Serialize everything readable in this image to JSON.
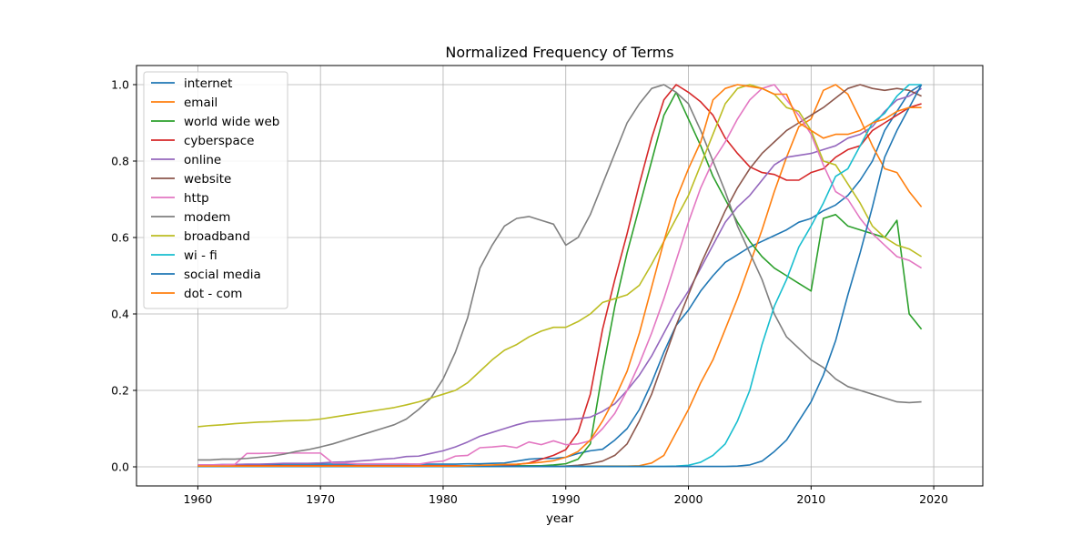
{
  "chart_data": {
    "type": "line",
    "title": "Normalized Frequency of Terms",
    "xlabel": "year",
    "ylabel": "",
    "xlim": [
      1955,
      2024
    ],
    "ylim": [
      -0.05,
      1.05
    ],
    "xticks": [
      1960,
      1970,
      1980,
      1990,
      2000,
      2010,
      2020
    ],
    "yticks": [
      0.0,
      0.2,
      0.4,
      0.6,
      0.8,
      1.0
    ],
    "xtick_labels": [
      "1960",
      "1970",
      "1980",
      "1990",
      "2000",
      "2010",
      "2020"
    ],
    "ytick_labels": [
      "0.0",
      "0.2",
      "0.4",
      "0.6",
      "0.8",
      "1.0"
    ],
    "grid": true,
    "legend_position": "top-left",
    "x": [
      1960,
      1961,
      1962,
      1963,
      1964,
      1965,
      1966,
      1967,
      1968,
      1969,
      1970,
      1971,
      1972,
      1973,
      1974,
      1975,
      1976,
      1977,
      1978,
      1979,
      1980,
      1981,
      1982,
      1983,
      1984,
      1985,
      1986,
      1987,
      1988,
      1989,
      1990,
      1991,
      1992,
      1993,
      1994,
      1995,
      1996,
      1997,
      1998,
      1999,
      2000,
      2001,
      2002,
      2003,
      2004,
      2005,
      2006,
      2007,
      2008,
      2009,
      2010,
      2011,
      2012,
      2013,
      2014,
      2015,
      2016,
      2017,
      2018,
      2019
    ],
    "series": [
      {
        "name": "internet",
        "color": "#1f77b4",
        "values": [
          0.005,
          0.005,
          0.005,
          0.005,
          0.006,
          0.006,
          0.006,
          0.007,
          0.007,
          0.007,
          0.007,
          0.007,
          0.007,
          0.007,
          0.007,
          0.007,
          0.007,
          0.007,
          0.007,
          0.007,
          0.007,
          0.007,
          0.008,
          0.008,
          0.009,
          0.01,
          0.015,
          0.02,
          0.022,
          0.022,
          0.025,
          0.035,
          0.042,
          0.046,
          0.07,
          0.1,
          0.15,
          0.22,
          0.3,
          0.37,
          0.41,
          0.46,
          0.5,
          0.535,
          0.555,
          0.575,
          0.59,
          0.605,
          0.62,
          0.64,
          0.65,
          0.67,
          0.685,
          0.71,
          0.75,
          0.8,
          0.88,
          0.93,
          0.98,
          1.0
        ]
      },
      {
        "name": "email",
        "color": "#ff7f0e",
        "values": [
          0.002,
          0.002,
          0.002,
          0.002,
          0.002,
          0.002,
          0.002,
          0.002,
          0.002,
          0.002,
          0.002,
          0.002,
          0.002,
          0.002,
          0.002,
          0.002,
          0.002,
          0.002,
          0.002,
          0.002,
          0.002,
          0.002,
          0.002,
          0.002,
          0.002,
          0.002,
          0.002,
          0.002,
          0.002,
          0.002,
          0.002,
          0.002,
          0.002,
          0.002,
          0.002,
          0.002,
          0.003,
          0.01,
          0.03,
          0.09,
          0.15,
          0.22,
          0.28,
          0.36,
          0.44,
          0.53,
          0.62,
          0.72,
          0.81,
          0.89,
          0.91,
          0.985,
          1.0,
          0.975,
          0.91,
          0.84,
          0.78,
          0.77,
          0.72,
          0.68
        ]
      },
      {
        "name": "world wide web",
        "color": "#2ca02c",
        "values": [
          0.003,
          0.003,
          0.003,
          0.003,
          0.003,
          0.003,
          0.003,
          0.003,
          0.003,
          0.003,
          0.003,
          0.003,
          0.003,
          0.003,
          0.003,
          0.003,
          0.003,
          0.003,
          0.003,
          0.003,
          0.003,
          0.003,
          0.003,
          0.003,
          0.003,
          0.003,
          0.003,
          0.003,
          0.003,
          0.005,
          0.008,
          0.02,
          0.06,
          0.25,
          0.42,
          0.56,
          0.68,
          0.8,
          0.92,
          0.98,
          0.91,
          0.84,
          0.76,
          0.7,
          0.64,
          0.59,
          0.55,
          0.52,
          0.5,
          0.48,
          0.46,
          0.65,
          0.66,
          0.63,
          0.62,
          0.61,
          0.6,
          0.645,
          0.4,
          0.36
        ]
      },
      {
        "name": "cyberspace",
        "color": "#d62728",
        "values": [
          0.003,
          0.003,
          0.003,
          0.003,
          0.003,
          0.003,
          0.003,
          0.003,
          0.003,
          0.003,
          0.003,
          0.003,
          0.003,
          0.003,
          0.003,
          0.003,
          0.003,
          0.003,
          0.003,
          0.003,
          0.003,
          0.003,
          0.003,
          0.003,
          0.003,
          0.004,
          0.006,
          0.01,
          0.02,
          0.03,
          0.045,
          0.09,
          0.19,
          0.36,
          0.49,
          0.61,
          0.74,
          0.86,
          0.96,
          1.0,
          0.98,
          0.955,
          0.92,
          0.86,
          0.82,
          0.785,
          0.77,
          0.765,
          0.75,
          0.75,
          0.77,
          0.78,
          0.81,
          0.83,
          0.84,
          0.88,
          0.9,
          0.92,
          0.94,
          0.95
        ]
      },
      {
        "name": "online",
        "color": "#9467bd",
        "values": [
          0.005,
          0.005,
          0.006,
          0.006,
          0.007,
          0.007,
          0.008,
          0.009,
          0.009,
          0.009,
          0.01,
          0.012,
          0.013,
          0.015,
          0.017,
          0.02,
          0.022,
          0.027,
          0.028,
          0.035,
          0.042,
          0.052,
          0.065,
          0.08,
          0.09,
          0.1,
          0.11,
          0.118,
          0.12,
          0.122,
          0.124,
          0.126,
          0.13,
          0.145,
          0.165,
          0.2,
          0.24,
          0.29,
          0.35,
          0.41,
          0.46,
          0.52,
          0.58,
          0.64,
          0.68,
          0.71,
          0.75,
          0.79,
          0.81,
          0.815,
          0.82,
          0.83,
          0.84,
          0.86,
          0.87,
          0.89,
          0.93,
          0.96,
          0.97,
          0.99
        ]
      },
      {
        "name": "website",
        "color": "#8c564b",
        "values": [
          0.001,
          0.001,
          0.001,
          0.001,
          0.001,
          0.001,
          0.001,
          0.001,
          0.001,
          0.001,
          0.001,
          0.001,
          0.001,
          0.001,
          0.001,
          0.001,
          0.001,
          0.001,
          0.001,
          0.001,
          0.001,
          0.001,
          0.001,
          0.001,
          0.001,
          0.001,
          0.001,
          0.001,
          0.001,
          0.001,
          0.002,
          0.004,
          0.008,
          0.015,
          0.03,
          0.06,
          0.12,
          0.19,
          0.28,
          0.37,
          0.45,
          0.53,
          0.6,
          0.67,
          0.73,
          0.78,
          0.82,
          0.85,
          0.88,
          0.9,
          0.92,
          0.94,
          0.965,
          0.99,
          1.0,
          0.99,
          0.985,
          0.99,
          0.985,
          0.97
        ]
      },
      {
        "name": "http",
        "color": "#e377c2",
        "values": [
          0.005,
          0.005,
          0.005,
          0.006,
          0.035,
          0.035,
          0.036,
          0.036,
          0.036,
          0.036,
          0.036,
          0.01,
          0.01,
          0.008,
          0.008,
          0.008,
          0.008,
          0.008,
          0.007,
          0.012,
          0.015,
          0.028,
          0.03,
          0.05,
          0.052,
          0.055,
          0.05,
          0.065,
          0.058,
          0.068,
          0.058,
          0.06,
          0.068,
          0.1,
          0.14,
          0.2,
          0.27,
          0.35,
          0.44,
          0.54,
          0.64,
          0.73,
          0.8,
          0.85,
          0.91,
          0.96,
          0.99,
          1.0,
          0.96,
          0.92,
          0.87,
          0.79,
          0.72,
          0.7,
          0.65,
          0.61,
          0.58,
          0.55,
          0.54,
          0.52
        ]
      },
      {
        "name": "modem",
        "color": "#7f7f7f",
        "values": [
          0.018,
          0.018,
          0.02,
          0.02,
          0.022,
          0.025,
          0.028,
          0.033,
          0.04,
          0.045,
          0.052,
          0.06,
          0.07,
          0.08,
          0.09,
          0.1,
          0.11,
          0.125,
          0.15,
          0.18,
          0.23,
          0.3,
          0.39,
          0.52,
          0.58,
          0.63,
          0.65,
          0.655,
          0.645,
          0.635,
          0.58,
          0.6,
          0.66,
          0.74,
          0.82,
          0.9,
          0.95,
          0.99,
          1.0,
          0.98,
          0.95,
          0.88,
          0.8,
          0.72,
          0.63,
          0.56,
          0.49,
          0.4,
          0.34,
          0.31,
          0.28,
          0.26,
          0.23,
          0.21,
          0.2,
          0.19,
          0.18,
          0.17,
          0.168,
          0.17
        ]
      },
      {
        "name": "broadband",
        "color": "#bcbd22",
        "values": [
          0.105,
          0.108,
          0.11,
          0.113,
          0.115,
          0.117,
          0.118,
          0.12,
          0.121,
          0.122,
          0.125,
          0.13,
          0.135,
          0.14,
          0.145,
          0.15,
          0.155,
          0.162,
          0.17,
          0.18,
          0.19,
          0.2,
          0.22,
          0.25,
          0.28,
          0.305,
          0.32,
          0.34,
          0.355,
          0.365,
          0.365,
          0.38,
          0.4,
          0.43,
          0.44,
          0.45,
          0.475,
          0.53,
          0.59,
          0.65,
          0.71,
          0.79,
          0.87,
          0.95,
          0.99,
          1.0,
          0.99,
          0.975,
          0.94,
          0.93,
          0.88,
          0.8,
          0.79,
          0.74,
          0.69,
          0.63,
          0.6,
          0.58,
          0.57,
          0.55
        ]
      },
      {
        "name": "wi - fi",
        "color": "#17becf",
        "values": [
          0.001,
          0.001,
          0.001,
          0.001,
          0.001,
          0.001,
          0.001,
          0.001,
          0.001,
          0.001,
          0.001,
          0.001,
          0.001,
          0.001,
          0.001,
          0.001,
          0.001,
          0.001,
          0.001,
          0.001,
          0.001,
          0.001,
          0.001,
          0.001,
          0.001,
          0.001,
          0.001,
          0.001,
          0.001,
          0.001,
          0.001,
          0.001,
          0.001,
          0.001,
          0.001,
          0.001,
          0.001,
          0.001,
          0.001,
          0.002,
          0.004,
          0.012,
          0.03,
          0.06,
          0.12,
          0.2,
          0.32,
          0.42,
          0.49,
          0.575,
          0.63,
          0.69,
          0.76,
          0.78,
          0.84,
          0.9,
          0.925,
          0.97,
          1.0,
          1.0
        ]
      },
      {
        "name": "social media",
        "color": "#1f77b4",
        "values": [
          0.001,
          0.001,
          0.001,
          0.001,
          0.001,
          0.001,
          0.001,
          0.001,
          0.001,
          0.001,
          0.001,
          0.001,
          0.001,
          0.001,
          0.001,
          0.001,
          0.001,
          0.001,
          0.001,
          0.001,
          0.001,
          0.001,
          0.001,
          0.001,
          0.001,
          0.001,
          0.001,
          0.001,
          0.001,
          0.001,
          0.001,
          0.001,
          0.001,
          0.001,
          0.001,
          0.001,
          0.001,
          0.001,
          0.001,
          0.001,
          0.001,
          0.001,
          0.001,
          0.001,
          0.002,
          0.005,
          0.015,
          0.04,
          0.07,
          0.12,
          0.17,
          0.24,
          0.33,
          0.45,
          0.56,
          0.68,
          0.81,
          0.88,
          0.94,
          1.0
        ]
      },
      {
        "name": "dot - com",
        "color": "#ff7f0e",
        "values": [
          0.002,
          0.002,
          0.002,
          0.002,
          0.002,
          0.002,
          0.002,
          0.002,
          0.002,
          0.002,
          0.002,
          0.002,
          0.002,
          0.002,
          0.002,
          0.002,
          0.002,
          0.002,
          0.002,
          0.002,
          0.002,
          0.002,
          0.003,
          0.004,
          0.005,
          0.006,
          0.007,
          0.009,
          0.012,
          0.016,
          0.025,
          0.04,
          0.07,
          0.12,
          0.18,
          0.25,
          0.35,
          0.47,
          0.59,
          0.7,
          0.78,
          0.85,
          0.96,
          0.99,
          1.0,
          0.995,
          0.99,
          0.975,
          0.975,
          0.9,
          0.88,
          0.86,
          0.87,
          0.87,
          0.88,
          0.9,
          0.91,
          0.93,
          0.94,
          0.94
        ]
      }
    ]
  }
}
